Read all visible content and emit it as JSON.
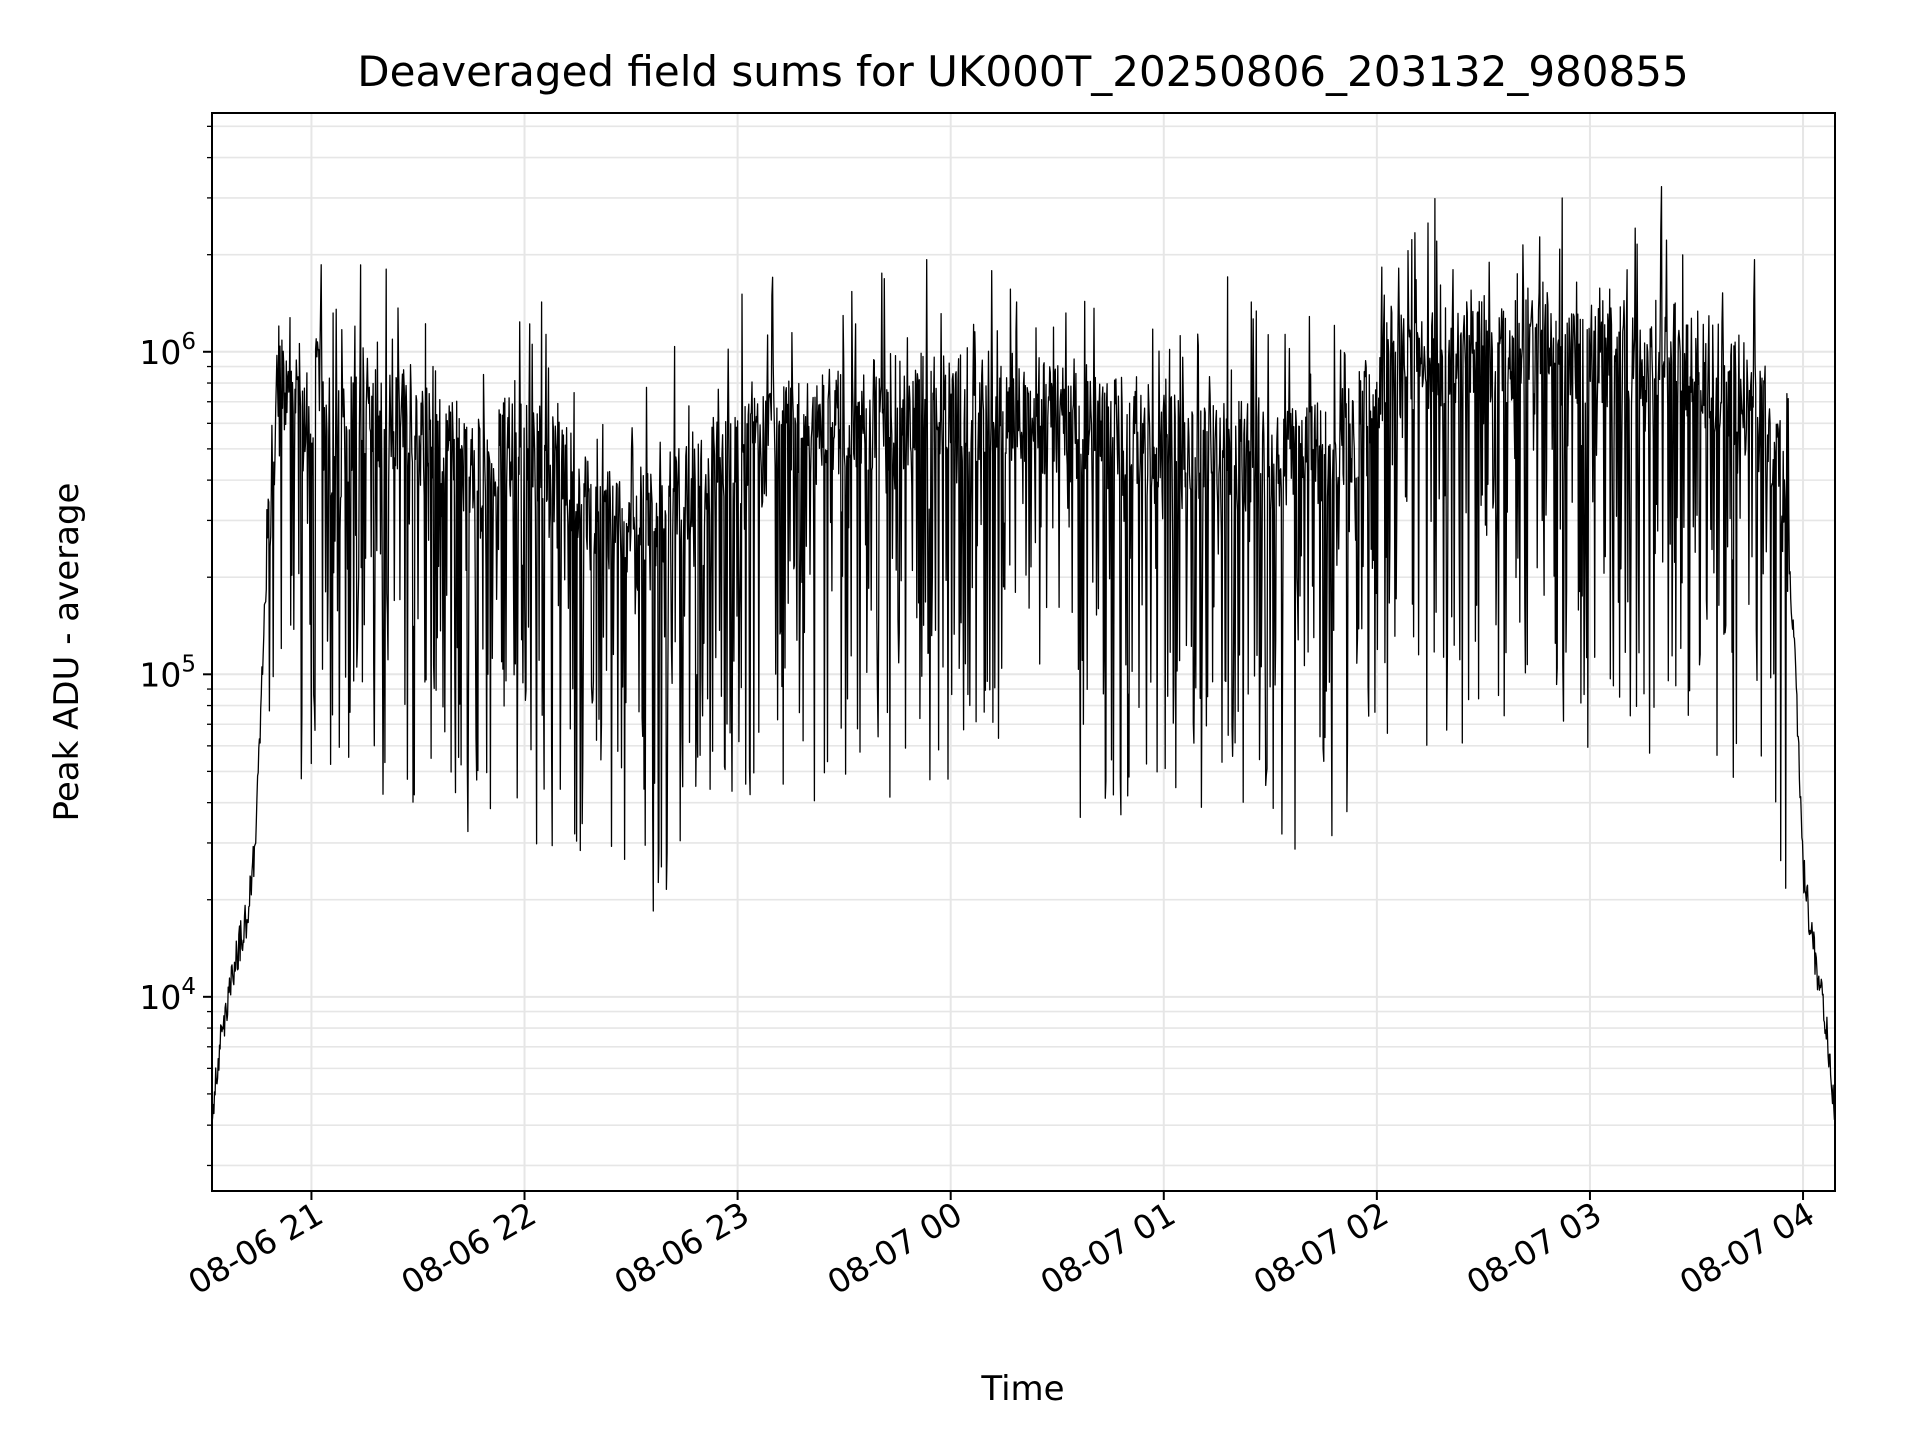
{
  "chart_data": {
    "type": "line",
    "title": "Deaveraged field sums for UK000T_20250806_203132_980855",
    "xlabel": "Time",
    "ylabel": "Peak ADU - average",
    "yscale": "log",
    "xlim": [
      "2025-08-06 20:32",
      "2025-08-07 04:09"
    ],
    "ylim": [
      2500,
      5500000
    ],
    "grid": true,
    "line_color": "#000000",
    "grid_color": "#e6e6e6",
    "xticks": [
      {
        "label": "08-06 21",
        "t": "2025-08-06 21:00"
      },
      {
        "label": "08-06 22",
        "t": "2025-08-06 22:00"
      },
      {
        "label": "08-06 23",
        "t": "2025-08-06 23:00"
      },
      {
        "label": "08-07 00",
        "t": "2025-08-07 00:00"
      },
      {
        "label": "08-07 01",
        "t": "2025-08-07 01:00"
      },
      {
        "label": "08-07 02",
        "t": "2025-08-07 02:00"
      },
      {
        "label": "08-07 03",
        "t": "2025-08-07 03:00"
      },
      {
        "label": "08-07 04",
        "t": "2025-08-07 04:00"
      }
    ],
    "yticks": [
      {
        "base": "10",
        "exp": "4",
        "value": 10000
      },
      {
        "base": "10",
        "exp": "5",
        "value": 100000
      },
      {
        "base": "10",
        "exp": "6",
        "value": 1000000
      }
    ],
    "series": [
      {
        "x": [
          "2025-08-06 20:32",
          "2025-08-06 20:35",
          "2025-08-06 20:38",
          "2025-08-06 20:40",
          "2025-08-06 20:42",
          "2025-08-06 20:44",
          "2025-08-06 20:46",
          "2025-08-06 20:48",
          "2025-08-06 20:50",
          "2025-08-06 20:52",
          "2025-08-06 20:54",
          "2025-08-06 20:56",
          "2025-08-06 20:58",
          "2025-08-06 21:00",
          "2025-08-06 21:03",
          "2025-08-06 21:06",
          "2025-08-06 21:10",
          "2025-08-06 21:15",
          "2025-08-06 21:20",
          "2025-08-06 21:25",
          "2025-08-06 21:30",
          "2025-08-06 21:35",
          "2025-08-06 21:40",
          "2025-08-06 21:45",
          "2025-08-06 21:50",
          "2025-08-06 21:55",
          "2025-08-06 22:00",
          "2025-08-06 22:10",
          "2025-08-06 22:20",
          "2025-08-06 22:30",
          "2025-08-06 22:40",
          "2025-08-06 22:50",
          "2025-08-06 23:00",
          "2025-08-06 23:15",
          "2025-08-06 23:30",
          "2025-08-06 23:45",
          "2025-08-07 00:00",
          "2025-08-07 00:15",
          "2025-08-07 00:30",
          "2025-08-07 00:45",
          "2025-08-07 01:00",
          "2025-08-07 01:15",
          "2025-08-07 01:30",
          "2025-08-07 01:45",
          "2025-08-07 02:00",
          "2025-08-07 02:02",
          "2025-08-07 02:10",
          "2025-08-07 02:20",
          "2025-08-07 02:30",
          "2025-08-07 02:45",
          "2025-08-07 03:00",
          "2025-08-07 03:15",
          "2025-08-07 03:30",
          "2025-08-07 03:40",
          "2025-08-07 03:48",
          "2025-08-07 03:52",
          "2025-08-07 03:55",
          "2025-08-07 03:58",
          "2025-08-07 04:00",
          "2025-08-07 04:03",
          "2025-08-07 04:06",
          "2025-08-07 04:09"
        ],
        "y": [
          4500,
          8000,
          12000,
          15000,
          18000,
          28000,
          90000,
          320000,
          650000,
          800000,
          900000,
          750000,
          600000,
          550000,
          1100000,
          450000,
          600000,
          700000,
          550000,
          650000,
          500000,
          600000,
          480000,
          400000,
          420000,
          550000,
          480000,
          420000,
          300000,
          260000,
          320000,
          400000,
          450000,
          550000,
          600000,
          650000,
          700000,
          650000,
          600000,
          550000,
          500000,
          480000,
          450000,
          520000,
          650000,
          1000000,
          900000,
          950000,
          1000000,
          1050000,
          950000,
          1000000,
          900000,
          800000,
          600000,
          450000,
          300000,
          100000,
          25000,
          14000,
          9000,
          4500
        ]
      }
    ]
  }
}
